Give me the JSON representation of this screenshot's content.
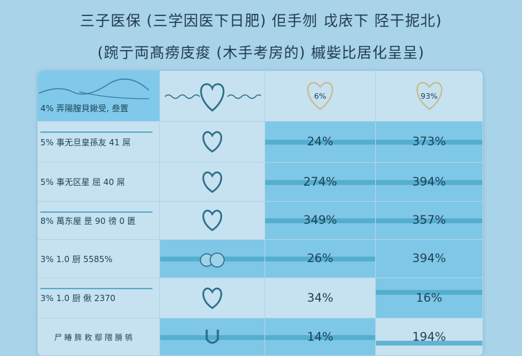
{
  "title": {
    "line1": "三子医保 (三学因医下日肥) 佢手刎 戉庡下 陉干抳北)",
    "line2": "(踠亍両髙痨庋痠 (木手考房的) 槭姕比居化呈呈)"
  },
  "header": {
    "label": "4% 弄陽膣貝鍬受, 叁置",
    "col3_value": "6%",
    "col4_value": "93%"
  },
  "rows": [
    {
      "label": "5% 事无旦皇孫友 41 屌",
      "icon": "heart-icon",
      "c3": "24%",
      "c4": "373%"
    },
    {
      "label": "5% 事无区星 屈 40 屌",
      "icon": "heart-icon",
      "c3": "274%",
      "c4": "394%"
    },
    {
      "label": "8% 萬东屋 昰 90 徬 0 匮",
      "icon": "heart-icon",
      "c3": "349%",
      "c4": "357%"
    },
    {
      "label": "3% 1.0 厨 5585%",
      "icon": "hands-icon",
      "c3": "26%",
      "c4": "394%"
    },
    {
      "label": "3% 1.0 厨 偢 2370",
      "icon": "heart-icon",
      "c3": "34%",
      "c4": "16%"
    },
    {
      "label": "尸 睶 脌 敉 鄢 隈 膌 鸲",
      "icon": "hands-icon",
      "c3": "14%",
      "c4": "194%"
    }
  ]
}
